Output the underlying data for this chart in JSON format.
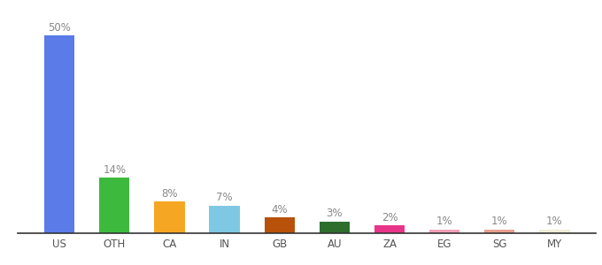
{
  "categories": [
    "US",
    "OTH",
    "CA",
    "IN",
    "GB",
    "AU",
    "ZA",
    "EG",
    "SG",
    "MY"
  ],
  "values": [
    50,
    14,
    8,
    7,
    4,
    3,
    2,
    1,
    1,
    1
  ],
  "labels": [
    "50%",
    "14%",
    "8%",
    "7%",
    "4%",
    "3%",
    "2%",
    "1%",
    "1%",
    "1%"
  ],
  "bar_colors": [
    "#5b7be8",
    "#3dba3d",
    "#f5a623",
    "#7ec8e3",
    "#b8520a",
    "#2d6e2d",
    "#e8358a",
    "#f4a0b8",
    "#e8a090",
    "#f0edd8"
  ],
  "ylim": [
    0,
    57
  ],
  "background_color": "#ffffff",
  "label_color": "#888888",
  "label_fontsize": 8.5,
  "tick_fontsize": 8.5,
  "bar_width": 0.55
}
